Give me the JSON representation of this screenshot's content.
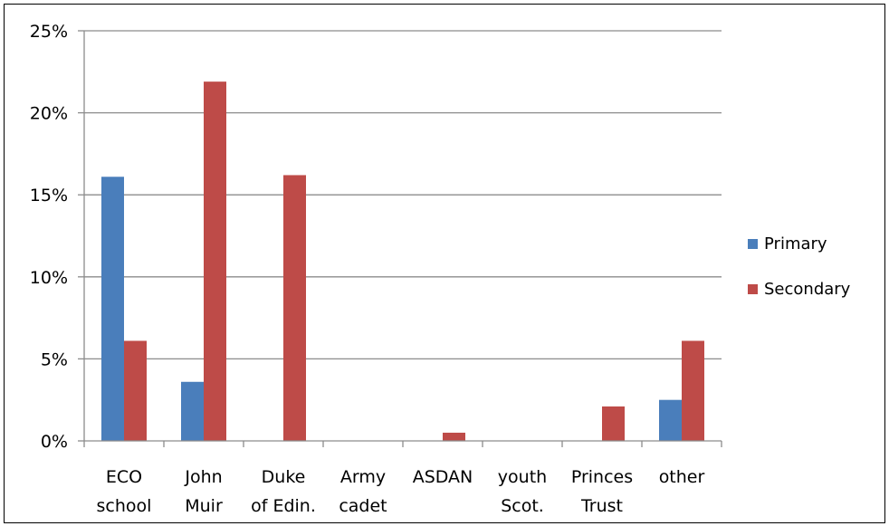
{
  "chart_data": {
    "type": "bar",
    "categories": [
      [
        "ECO",
        "school"
      ],
      [
        "John",
        "Muir"
      ],
      [
        "Duke",
        "of Edin."
      ],
      [
        "Army",
        "cadet"
      ],
      [
        "ASDAN"
      ],
      [
        "youth",
        "Scot."
      ],
      [
        "Princes",
        "Trust"
      ],
      [
        "other"
      ]
    ],
    "series": [
      {
        "name": "Primary",
        "color": "#4a7ebb",
        "values": [
          16.1,
          3.6,
          0,
          0,
          0,
          0,
          0,
          2.5
        ]
      },
      {
        "name": "Secondary",
        "color": "#be4b48",
        "values": [
          6.1,
          21.9,
          16.2,
          0,
          0.5,
          0,
          2.1,
          6.1
        ]
      }
    ],
    "yticks": [
      "0%",
      "5%",
      "10%",
      "15%",
      "20%",
      "25%"
    ],
    "ylim": [
      0,
      25
    ],
    "grid": true,
    "legend": "right",
    "colors": {
      "gridline": "#8c8c8c",
      "axis": "#8c8c8c"
    }
  }
}
